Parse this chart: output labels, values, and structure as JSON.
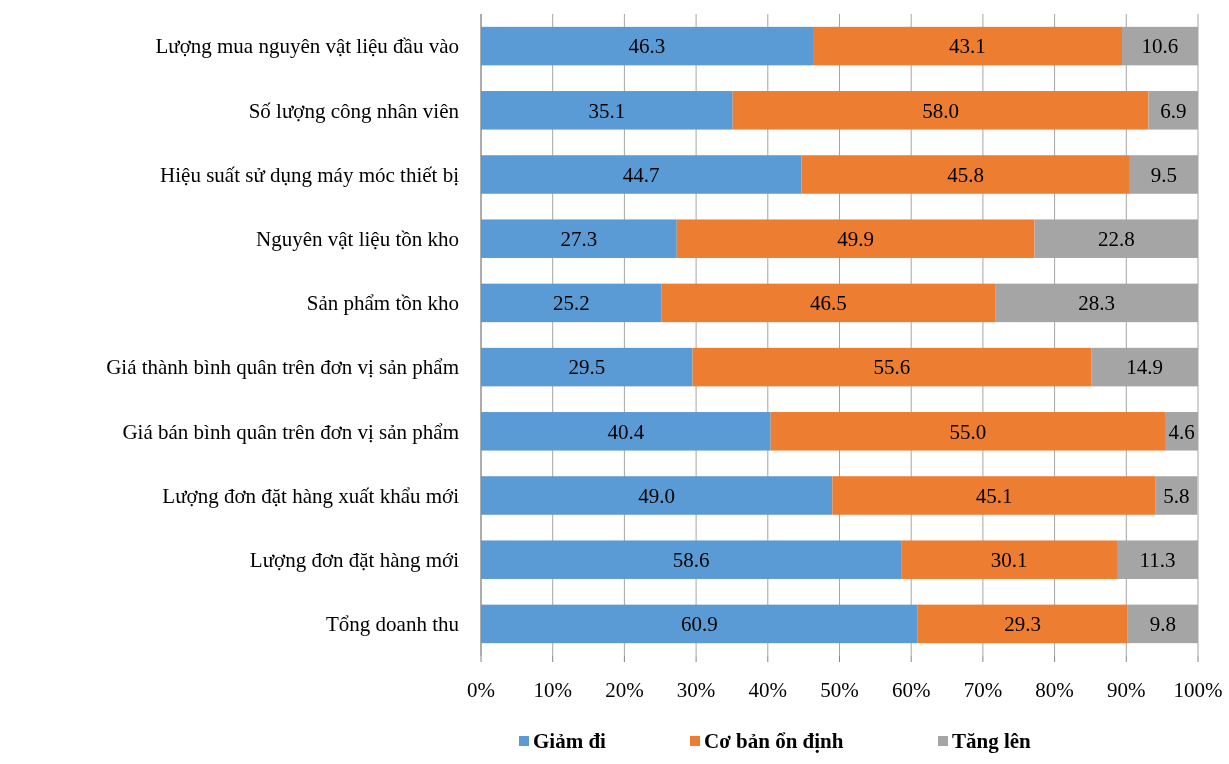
{
  "chart_data": {
    "type": "bar",
    "orientation": "horizontal",
    "stacked": true,
    "categories": [
      "Lượng mua nguyên vật liệu đầu vào",
      "Số lượng công nhân viên",
      "Hiệu suất sử dụng máy móc thiết bị",
      "Nguyên vật liệu tồn kho",
      "Sản phẩm tồn kho",
      "Giá thành bình quân trên đơn vị sản phẩm",
      "Giá bán bình quân trên đơn vị sản phẩm",
      "Lượng đơn đặt hàng xuất khẩu mới",
      "Lượng đơn đặt hàng mới",
      "Tổng doanh thu"
    ],
    "series": [
      {
        "name": "Giảm đi",
        "color": "#5b9bd5",
        "values": [
          46.3,
          35.1,
          44.7,
          27.3,
          25.2,
          29.5,
          40.4,
          49,
          58.6,
          60.9
        ],
        "value_labels": [
          "46.3",
          "35.1",
          "44.7",
          "27.3",
          "25.2",
          "29.5",
          "40.4",
          "49.0",
          "58.6",
          "60.9"
        ]
      },
      {
        "name": "Cơ bản ổn định",
        "color": "#ed7d31",
        "values": [
          43.1,
          58,
          45.8,
          49.9,
          46.5,
          55.6,
          55,
          45.1,
          30.1,
          29.3
        ],
        "value_labels": [
          "43.1",
          "58.0",
          "45.8",
          "49.9",
          "46.5",
          "55.6",
          "55.0",
          "45.1",
          "30.1",
          "29.3"
        ]
      },
      {
        "name": "Tăng lên",
        "color": "#a5a5a5",
        "values": [
          10.6,
          6.9,
          9.5,
          22.8,
          28.3,
          14.9,
          4.6,
          5.8,
          11.3,
          9.8
        ],
        "value_labels": [
          "10.6",
          "6.9",
          "9.5",
          "22.8",
          "28.3",
          "14.9",
          "4.6",
          "5.8",
          "11.3",
          "9.8"
        ]
      }
    ],
    "xlim": [
      0,
      100
    ],
    "xticks": [
      {
        "value": 0,
        "label": "0%"
      },
      {
        "value": 10,
        "label": "10%"
      },
      {
        "value": 20,
        "label": "20%"
      },
      {
        "value": 30,
        "label": "30%"
      },
      {
        "value": 40,
        "label": "40%"
      },
      {
        "value": 50,
        "label": "50%"
      },
      {
        "value": 60,
        "label": "60%"
      },
      {
        "value": 70,
        "label": "70%"
      },
      {
        "value": 80,
        "label": "80%"
      },
      {
        "value": 90,
        "label": "90%"
      },
      {
        "value": 100,
        "label": "100%"
      }
    ],
    "grid": "x",
    "legend": "bottom"
  }
}
